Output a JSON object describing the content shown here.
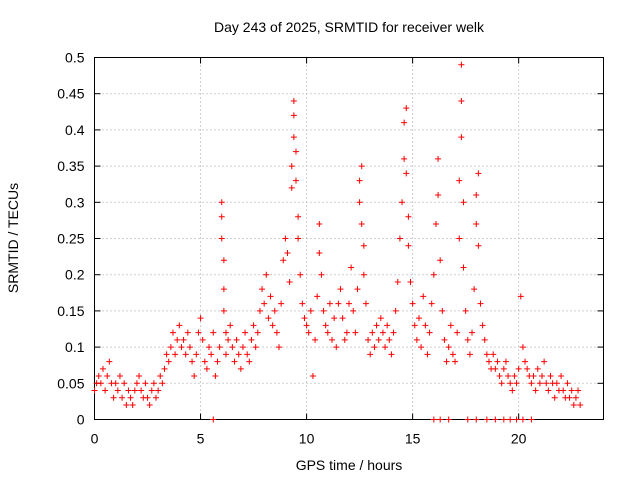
{
  "chart_data": {
    "type": "scatter",
    "title": "Day 243 of 2025, SRMTID for receiver welk",
    "xlabel": "GPS time / hours",
    "ylabel": "SRMTID / TECUs",
    "xlim": [
      0,
      24
    ],
    "ylim": [
      0,
      0.5
    ],
    "x_ticks": [
      0,
      5,
      10,
      15,
      20
    ],
    "x_tick_labels": [
      "0",
      "5",
      "10",
      "15",
      "20"
    ],
    "y_ticks": [
      0,
      0.05,
      0.1,
      0.15,
      0.2,
      0.25,
      0.3,
      0.35,
      0.4,
      0.45,
      0.5
    ],
    "y_tick_labels": [
      "0",
      "0.05",
      "0.1",
      "0.15",
      "0.2",
      "0.25",
      "0.3",
      "0.35",
      "0.4",
      "0.45",
      "0.5"
    ],
    "grid": true,
    "marker": "plus",
    "color": "#ff0000",
    "series": [
      {
        "name": "SRMTID",
        "points": [
          [
            0.0,
            0.04
          ],
          [
            0.1,
            0.05
          ],
          [
            0.2,
            0.06
          ],
          [
            0.3,
            0.05
          ],
          [
            0.4,
            0.07
          ],
          [
            0.5,
            0.04
          ],
          [
            0.6,
            0.06
          ],
          [
            0.7,
            0.08
          ],
          [
            0.8,
            0.05
          ],
          [
            0.9,
            0.03
          ],
          [
            1.0,
            0.05
          ],
          [
            1.1,
            0.04
          ],
          [
            1.2,
            0.06
          ],
          [
            1.3,
            0.03
          ],
          [
            1.4,
            0.05
          ],
          [
            1.5,
            0.02
          ],
          [
            1.6,
            0.04
          ],
          [
            1.7,
            0.03
          ],
          [
            1.8,
            0.02
          ],
          [
            1.9,
            0.04
          ],
          [
            2.0,
            0.05
          ],
          [
            2.1,
            0.06
          ],
          [
            2.2,
            0.04
          ],
          [
            2.3,
            0.03
          ],
          [
            2.4,
            0.05
          ],
          [
            2.5,
            0.03
          ],
          [
            2.6,
            0.02
          ],
          [
            2.7,
            0.04
          ],
          [
            2.8,
            0.05
          ],
          [
            2.9,
            0.03
          ],
          [
            3.0,
            0.04
          ],
          [
            3.1,
            0.06
          ],
          [
            3.2,
            0.05
          ],
          [
            3.3,
            0.07
          ],
          [
            3.4,
            0.09
          ],
          [
            3.5,
            0.08
          ],
          [
            3.6,
            0.1
          ],
          [
            3.7,
            0.12
          ],
          [
            3.8,
            0.09
          ],
          [
            3.9,
            0.11
          ],
          [
            4.0,
            0.13
          ],
          [
            4.1,
            0.1
          ],
          [
            4.2,
            0.11
          ],
          [
            4.3,
            0.09
          ],
          [
            4.4,
            0.12
          ],
          [
            4.5,
            0.1
          ],
          [
            4.6,
            0.08
          ],
          [
            4.7,
            0.06
          ],
          [
            4.8,
            0.09
          ],
          [
            4.9,
            0.12
          ],
          [
            5.0,
            0.14
          ],
          [
            5.1,
            0.11
          ],
          [
            5.2,
            0.08
          ],
          [
            5.3,
            0.07
          ],
          [
            5.4,
            0.1
          ],
          [
            5.5,
            0.09
          ],
          [
            5.6,
            0.12
          ],
          [
            5.7,
            0.06
          ],
          [
            5.8,
            0.08
          ],
          [
            5.9,
            0.1
          ],
          [
            6.0,
            0.3
          ],
          [
            6.0,
            0.28
          ],
          [
            6.0,
            0.25
          ],
          [
            6.1,
            0.22
          ],
          [
            6.1,
            0.18
          ],
          [
            6.1,
            0.15
          ],
          [
            6.2,
            0.12
          ],
          [
            6.2,
            0.09
          ],
          [
            6.3,
            0.11
          ],
          [
            6.4,
            0.13
          ],
          [
            6.5,
            0.1
          ],
          [
            6.6,
            0.08
          ],
          [
            6.7,
            0.11
          ],
          [
            6.8,
            0.09
          ],
          [
            6.9,
            0.07
          ],
          [
            7.0,
            0.1
          ],
          [
            7.1,
            0.12
          ],
          [
            7.2,
            0.09
          ],
          [
            7.3,
            0.08
          ],
          [
            7.4,
            0.11
          ],
          [
            7.5,
            0.13
          ],
          [
            7.6,
            0.1
          ],
          [
            7.7,
            0.12
          ],
          [
            7.8,
            0.15
          ],
          [
            7.9,
            0.18
          ],
          [
            8.0,
            0.16
          ],
          [
            8.1,
            0.2
          ],
          [
            8.2,
            0.14
          ],
          [
            8.3,
            0.17
          ],
          [
            8.4,
            0.13
          ],
          [
            8.5,
            0.15
          ],
          [
            8.6,
            0.12
          ],
          [
            8.7,
            0.1
          ],
          [
            8.8,
            0.16
          ],
          [
            8.9,
            0.22
          ],
          [
            9.0,
            0.25
          ],
          [
            9.1,
            0.23
          ],
          [
            9.2,
            0.19
          ],
          [
            9.3,
            0.32
          ],
          [
            9.3,
            0.35
          ],
          [
            9.4,
            0.39
          ],
          [
            9.4,
            0.42
          ],
          [
            9.4,
            0.44
          ],
          [
            9.5,
            0.37
          ],
          [
            9.5,
            0.33
          ],
          [
            9.6,
            0.28
          ],
          [
            9.6,
            0.25
          ],
          [
            9.7,
            0.2
          ],
          [
            9.8,
            0.16
          ],
          [
            9.9,
            0.14
          ],
          [
            10.0,
            0.13
          ],
          [
            10.1,
            0.12
          ],
          [
            10.2,
            0.15
          ],
          [
            10.3,
            0.06
          ],
          [
            10.4,
            0.11
          ],
          [
            10.5,
            0.17
          ],
          [
            10.6,
            0.27
          ],
          [
            10.6,
            0.23
          ],
          [
            10.7,
            0.2
          ],
          [
            10.8,
            0.15
          ],
          [
            10.9,
            0.13
          ],
          [
            11.0,
            0.12
          ],
          [
            11.1,
            0.16
          ],
          [
            11.2,
            0.11
          ],
          [
            11.3,
            0.14
          ],
          [
            11.4,
            0.1
          ],
          [
            11.5,
            0.16
          ],
          [
            11.6,
            0.18
          ],
          [
            11.7,
            0.14
          ],
          [
            11.8,
            0.11
          ],
          [
            11.9,
            0.12
          ],
          [
            12.0,
            0.16
          ],
          [
            12.1,
            0.21
          ],
          [
            12.2,
            0.15
          ],
          [
            12.3,
            0.12
          ],
          [
            12.4,
            0.18
          ],
          [
            12.5,
            0.3
          ],
          [
            12.5,
            0.33
          ],
          [
            12.6,
            0.35
          ],
          [
            12.6,
            0.27
          ],
          [
            12.7,
            0.24
          ],
          [
            12.7,
            0.2
          ],
          [
            12.8,
            0.16
          ],
          [
            12.9,
            0.11
          ],
          [
            13.0,
            0.09
          ],
          [
            13.1,
            0.12
          ],
          [
            13.2,
            0.1
          ],
          [
            13.3,
            0.13
          ],
          [
            13.4,
            0.11
          ],
          [
            13.5,
            0.14
          ],
          [
            13.6,
            0.12
          ],
          [
            13.7,
            0.1
          ],
          [
            13.8,
            0.13
          ],
          [
            13.9,
            0.11
          ],
          [
            14.0,
            0.09
          ],
          [
            14.1,
            0.12
          ],
          [
            14.2,
            0.15
          ],
          [
            14.3,
            0.19
          ],
          [
            14.4,
            0.25
          ],
          [
            14.5,
            0.3
          ],
          [
            14.6,
            0.36
          ],
          [
            14.6,
            0.41
          ],
          [
            14.7,
            0.43
          ],
          [
            14.7,
            0.34
          ],
          [
            14.8,
            0.28
          ],
          [
            14.8,
            0.24
          ],
          [
            14.9,
            0.19
          ],
          [
            15.0,
            0.16
          ],
          [
            15.1,
            0.13
          ],
          [
            15.2,
            0.11
          ],
          [
            15.3,
            0.14
          ],
          [
            15.4,
            0.1
          ],
          [
            15.5,
            0.17
          ],
          [
            15.6,
            0.13
          ],
          [
            15.7,
            0.09
          ],
          [
            15.8,
            0.12
          ],
          [
            15.9,
            0.16
          ],
          [
            16.0,
            0.2
          ],
          [
            16.1,
            0.27
          ],
          [
            16.2,
            0.31
          ],
          [
            16.2,
            0.36
          ],
          [
            16.3,
            0.22
          ],
          [
            16.4,
            0.15
          ],
          [
            16.5,
            0.11
          ],
          [
            16.6,
            0.08
          ],
          [
            16.7,
            0.1
          ],
          [
            16.8,
            0.13
          ],
          [
            16.9,
            0.09
          ],
          [
            17.0,
            0.08
          ],
          [
            17.1,
            0.12
          ],
          [
            17.2,
            0.25
          ],
          [
            17.2,
            0.33
          ],
          [
            17.3,
            0.39
          ],
          [
            17.3,
            0.44
          ],
          [
            17.3,
            0.49
          ],
          [
            17.4,
            0.3
          ],
          [
            17.4,
            0.21
          ],
          [
            17.5,
            0.15
          ],
          [
            17.6,
            0.11
          ],
          [
            17.7,
            0.09
          ],
          [
            17.8,
            0.12
          ],
          [
            17.9,
            0.18
          ],
          [
            18.0,
            0.27
          ],
          [
            18.0,
            0.31
          ],
          [
            18.1,
            0.34
          ],
          [
            18.1,
            0.24
          ],
          [
            18.2,
            0.16
          ],
          [
            18.3,
            0.13
          ],
          [
            18.4,
            0.11
          ],
          [
            18.5,
            0.09
          ],
          [
            18.6,
            0.08
          ],
          [
            18.7,
            0.07
          ],
          [
            18.8,
            0.09
          ],
          [
            18.9,
            0.07
          ],
          [
            19.0,
            0.08
          ],
          [
            19.1,
            0.06
          ],
          [
            19.2,
            0.05
          ],
          [
            19.3,
            0.07
          ],
          [
            19.4,
            0.08
          ],
          [
            19.5,
            0.06
          ],
          [
            19.6,
            0.05
          ],
          [
            19.7,
            0.04
          ],
          [
            19.8,
            0.06
          ],
          [
            19.9,
            0.05
          ],
          [
            20.0,
            0.07
          ],
          [
            20.1,
            0.17
          ],
          [
            20.2,
            0.1
          ],
          [
            20.3,
            0.08
          ],
          [
            20.4,
            0.07
          ],
          [
            20.5,
            0.06
          ],
          [
            20.6,
            0.05
          ],
          [
            20.7,
            0.06
          ],
          [
            20.8,
            0.04
          ],
          [
            20.9,
            0.07
          ],
          [
            21.0,
            0.05
          ],
          [
            21.1,
            0.06
          ],
          [
            21.2,
            0.08
          ],
          [
            21.3,
            0.05
          ],
          [
            21.4,
            0.04
          ],
          [
            21.5,
            0.06
          ],
          [
            21.6,
            0.05
          ],
          [
            21.7,
            0.03
          ],
          [
            21.8,
            0.05
          ],
          [
            21.9,
            0.04
          ],
          [
            22.0,
            0.06
          ],
          [
            22.1,
            0.04
          ],
          [
            22.2,
            0.03
          ],
          [
            22.3,
            0.05
          ],
          [
            22.4,
            0.03
          ],
          [
            22.5,
            0.04
          ],
          [
            22.6,
            0.02
          ],
          [
            22.7,
            0.03
          ],
          [
            22.8,
            0.04
          ],
          [
            22.9,
            0.02
          ],
          [
            5.6,
            0.0
          ],
          [
            16.0,
            0.0
          ],
          [
            16.3,
            0.0
          ],
          [
            16.7,
            0.0
          ],
          [
            17.6,
            0.0
          ],
          [
            18.0,
            0.0
          ],
          [
            18.5,
            0.0
          ],
          [
            18.9,
            0.0
          ],
          [
            19.3,
            0.0
          ],
          [
            19.6,
            0.0
          ],
          [
            19.9,
            0.0
          ],
          [
            20.2,
            0.0
          ],
          [
            20.6,
            0.0
          ]
        ]
      }
    ]
  }
}
